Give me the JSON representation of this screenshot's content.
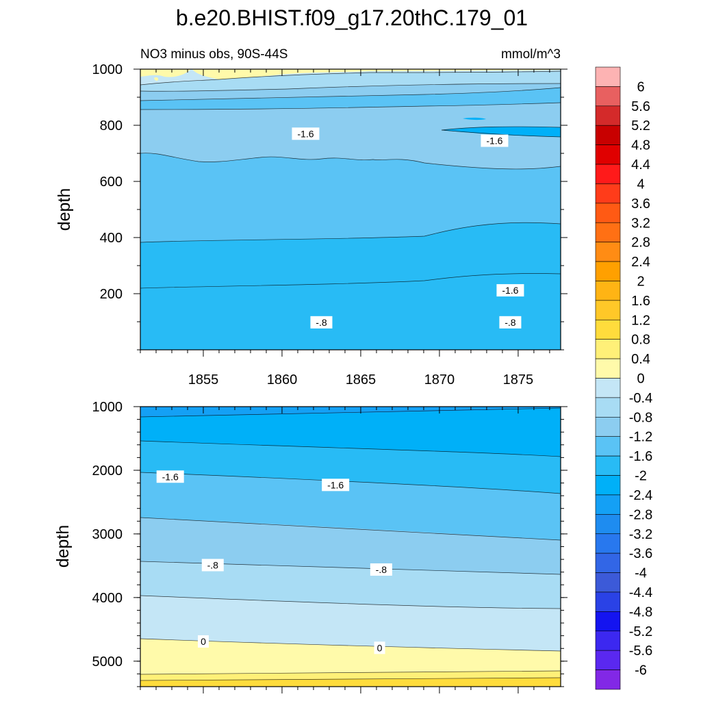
{
  "chart_data": {
    "type": "contour",
    "title": "b.e20.BHIST.f09_g17.20thC.179_01",
    "subtitle_left": "NO3 minus obs, 90S-44S",
    "subtitle_right": "mmol/m^3",
    "ylabel": "depth",
    "x_ticks": [
      "1855",
      "1860",
      "1865",
      "1870",
      "1875"
    ],
    "xlim": [
      1851,
      1877.7
    ],
    "upper_panel": {
      "ylim": [
        1000,
        0
      ],
      "y_ticks": [
        "200",
        "400",
        "600",
        "800",
        "1000"
      ],
      "contour_labels": [
        {
          "text": "-.8",
          "x": 1862.5,
          "depth": 98
        },
        {
          "text": "-.8",
          "x": 1874.5,
          "depth": 98
        },
        {
          "text": "-1.6",
          "x": 1874.5,
          "depth": 212
        },
        {
          "text": "-1.6",
          "x": 1861.5,
          "depth": 770
        },
        {
          "text": "-1.6",
          "x": 1873.5,
          "depth": 745
        }
      ]
    },
    "lower_panel": {
      "ylim": [
        1000,
        5400
      ],
      "y_ticks": [
        "1000",
        "2000",
        "3000",
        "4000",
        "5000"
      ],
      "contour_labels": [
        {
          "text": "-1.6",
          "x": 1852.9,
          "depth": 2100
        },
        {
          "text": "-1.6",
          "x": 1863.4,
          "depth": 2230
        },
        {
          "text": "-.8",
          "x": 1855.6,
          "depth": 3490
        },
        {
          "text": "-.8",
          "x": 1866.3,
          "depth": 3560
        },
        {
          "text": "0",
          "x": 1855.0,
          "depth": 4690
        },
        {
          "text": "0",
          "x": 1866.2,
          "depth": 4790
        }
      ]
    },
    "colorbar": {
      "labels": [
        "6",
        "5.6",
        "5.2",
        "4.8",
        "4.4",
        "4",
        "3.6",
        "3.2",
        "2.8",
        "2.4",
        "2",
        "1.6",
        "1.2",
        "0.8",
        "0.4",
        "0",
        "-0.4",
        "-0.8",
        "-1.2",
        "-1.6",
        "-2",
        "-2.4",
        "-2.8",
        "-3.2",
        "-3.6",
        "-4",
        "-4.4",
        "-4.8",
        "-5.2",
        "-5.6",
        "-6"
      ],
      "colors": [
        "#fdb3b3",
        "#e86060",
        "#d42a2a",
        "#c80000",
        "#e00000",
        "#ff1a1a",
        "#ff3c1a",
        "#ff5a14",
        "#ff7014",
        "#ff8c14",
        "#ffa000",
        "#ffb414",
        "#ffc828",
        "#ffdc3c",
        "#fff078",
        "#fffaaa",
        "#c4e6f6",
        "#a8dcf4",
        "#8ccdf0",
        "#5ac3f5",
        "#28bbf5",
        "#00b0f8",
        "#14a0f5",
        "#1e8cf0",
        "#2878ee",
        "#3266e6",
        "#3c5ad8",
        "#2a42e6",
        "#1414f0",
        "#3c28f0",
        "#5a28f0",
        "#8228e6"
      ]
    }
  }
}
